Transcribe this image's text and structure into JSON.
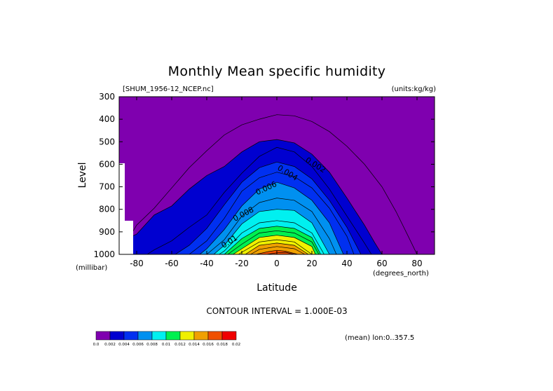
{
  "chart_data": {
    "type": "contour",
    "title": "Monthly Mean specific humidity",
    "file_label": "[SHUM_1956-12_NCEP.nc]",
    "units_label": "(units:kg/kg)",
    "xlabel": "Latitude",
    "ylabel": "Level",
    "x_units": "(degrees_north)",
    "y_units": "(millibar)",
    "xlim": [
      -90,
      90
    ],
    "ylim": [
      1000,
      300
    ],
    "x_ticks": [
      -80,
      -60,
      -40,
      -20,
      0,
      20,
      40,
      60,
      80
    ],
    "y_ticks": [
      300,
      400,
      500,
      600,
      700,
      800,
      900,
      1000
    ],
    "contour_interval_text": "CONTOUR INTERVAL = 1.000E-03",
    "mean_text": "(mean) lon:0..357.5",
    "contour_labels": [
      "0.002",
      "0.004",
      "0.006",
      "0.008",
      "0.01"
    ],
    "colorbar": {
      "ticks": [
        "0.0",
        "0.002",
        "0.004",
        "0.006",
        "0.008",
        "0.01",
        "0.012",
        "0.014",
        "0.016",
        "0.018",
        "0.02"
      ],
      "colors": [
        "#7f00af",
        "#0000d0",
        "#0030f0",
        "#0090f0",
        "#00f0f0",
        "#00f050",
        "#f0f000",
        "#f0a000",
        "#f05000",
        "#f00000"
      ]
    },
    "series": [
      {
        "level": 0.0015,
        "lats": [
          -85,
          -80,
          -70,
          -60,
          -50,
          -40,
          -30,
          -20,
          -10,
          0,
          10,
          20,
          30,
          40,
          50,
          60,
          68,
          75,
          80,
          85,
          88
        ],
        "p_top": [
          935,
          870,
          795,
          705,
          615,
          540,
          470,
          425,
          400,
          380,
          385,
          410,
          455,
          520,
          600,
          700,
          810,
          920,
          1000,
          1000,
          1000
        ]
      },
      {
        "level": 0.002,
        "lats": [
          -88,
          -80,
          -70,
          -60,
          -50,
          -40,
          -30,
          -20,
          -10,
          0,
          10,
          20,
          30,
          40,
          50,
          56,
          60
        ],
        "p_top": [
          940,
          910,
          825,
          785,
          710,
          650,
          610,
          545,
          500,
          490,
          505,
          555,
          635,
          750,
          870,
          950,
          1000
        ]
      },
      {
        "level": 0.003,
        "lats": [
          -74,
          -70,
          -60,
          -50,
          -40,
          -30,
          -20,
          -10,
          0,
          10,
          20,
          30,
          40,
          50,
          54
        ],
        "p_top": [
          1000,
          980,
          940,
          880,
          825,
          725,
          640,
          565,
          525,
          545,
          610,
          710,
          830,
          950,
          1000
        ]
      },
      {
        "level": 0.004,
        "lats": [
          -58,
          -50,
          -40,
          -30,
          -20,
          -10,
          0,
          10,
          20,
          30,
          40,
          48
        ],
        "p_top": [
          1000,
          960,
          885,
          780,
          680,
          615,
          590,
          610,
          665,
          760,
          880,
          1000
        ]
      },
      {
        "level": 0.005,
        "lats": [
          -50,
          -40,
          -30,
          -20,
          -10,
          0,
          10,
          20,
          30,
          40,
          44
        ],
        "p_top": [
          1000,
          940,
          840,
          720,
          660,
          635,
          655,
          705,
          795,
          920,
          1000
        ]
      },
      {
        "level": 0.006,
        "lats": [
          -44,
          -40,
          -30,
          -20,
          -10,
          0,
          10,
          20,
          30,
          38
        ],
        "p_top": [
          1000,
          975,
          890,
          785,
          710,
          680,
          705,
          760,
          860,
          1000
        ]
      },
      {
        "level": 0.007,
        "lats": [
          -40,
          -30,
          -20,
          -10,
          0,
          10,
          20,
          30,
          34
        ],
        "p_top": [
          1000,
          935,
          830,
          770,
          750,
          760,
          810,
          930,
          1000
        ]
      },
      {
        "level": 0.008,
        "lats": [
          -36,
          -30,
          -20,
          -10,
          0,
          10,
          20,
          30
        ],
        "p_top": [
          1000,
          960,
          865,
          810,
          800,
          805,
          860,
          1000
        ]
      },
      {
        "level": 0.009,
        "lats": [
          -33,
          -30,
          -20,
          -10,
          0,
          10,
          20,
          27
        ],
        "p_top": [
          1000,
          985,
          905,
          860,
          850,
          860,
          905,
          1000
        ]
      },
      {
        "level": 0.01,
        "lats": [
          -30,
          -20,
          -10,
          0,
          10,
          20,
          25
        ],
        "p_top": [
          1000,
          930,
          885,
          875,
          885,
          925,
          1000
        ]
      },
      {
        "level": 0.011,
        "lats": [
          -28,
          -20,
          -10,
          0,
          10,
          20,
          24
        ],
        "p_top": [
          1000,
          955,
          905,
          895,
          905,
          945,
          1000
        ]
      },
      {
        "level": 0.012,
        "lats": [
          -25,
          -20,
          -10,
          0,
          10,
          20,
          22
        ],
        "p_top": [
          1000,
          975,
          925,
          915,
          925,
          965,
          1000
        ]
      },
      {
        "level": 0.013,
        "lats": [
          -22,
          -10,
          0,
          10,
          20
        ],
        "p_top": [
          1000,
          945,
          935,
          945,
          1000
        ]
      },
      {
        "level": 0.014,
        "lats": [
          -18,
          -10,
          0,
          10,
          18
        ],
        "p_top": [
          1000,
          960,
          950,
          960,
          1000
        ]
      },
      {
        "level": 0.015,
        "lats": [
          -15,
          -10,
          0,
          10,
          16
        ],
        "p_top": [
          1000,
          978,
          965,
          975,
          1000
        ]
      },
      {
        "level": 0.016,
        "lats": [
          -12,
          -5,
          0,
          5,
          12
        ],
        "p_top": [
          1000,
          988,
          982,
          986,
          1000
        ]
      },
      {
        "level": 0.017,
        "lats": [
          -6,
          0,
          5,
          10
        ],
        "p_top": [
          1000,
          993,
          991,
          1000
        ]
      }
    ]
  }
}
